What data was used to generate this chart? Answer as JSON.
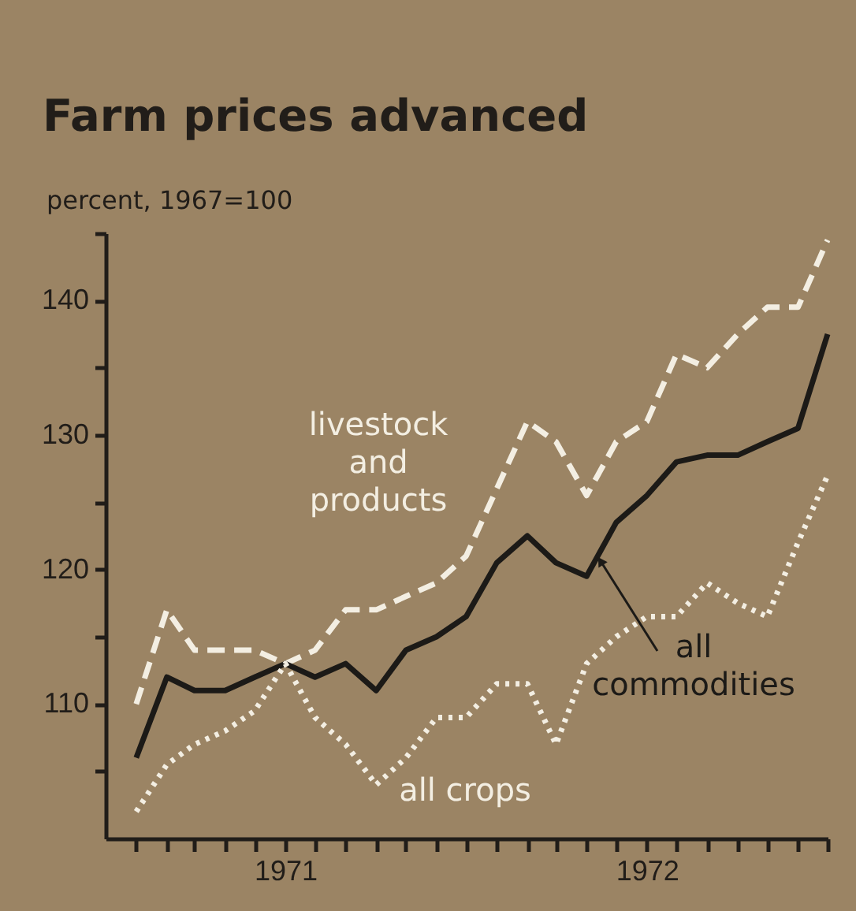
{
  "chart_data": {
    "type": "line",
    "title": "Farm prices advanced",
    "ylabel": "percent, 1967=100",
    "x": [
      "1971-01",
      "1971-02",
      "1971-03",
      "1971-04",
      "1971-05",
      "1971-06",
      "1971-07",
      "1971-08",
      "1971-09",
      "1971-10",
      "1971-11",
      "1971-12",
      "1972-01",
      "1972-02",
      "1972-03",
      "1972-04",
      "1972-05",
      "1972-06",
      "1972-07",
      "1972-08",
      "1972-09",
      "1972-10",
      "1972-11",
      "1972-12"
    ],
    "series": [
      {
        "name": "livestock and products",
        "color": "#f3eee2",
        "line_style": "dashed",
        "values": [
          110,
          117,
          114,
          114,
          114,
          113,
          114,
          117,
          117,
          118,
          119,
          121,
          126,
          131,
          129.5,
          125.5,
          129.5,
          131,
          136,
          135,
          137.5,
          139.5,
          139.5,
          144.5
        ]
      },
      {
        "name": "all commodities",
        "color": "#1c1a17",
        "line_style": "solid",
        "values": [
          106,
          112,
          111,
          111,
          112,
          113,
          112,
          113,
          111,
          114,
          115,
          116.5,
          120.5,
          122.5,
          120.5,
          119.5,
          123.5,
          125.5,
          128,
          128.5,
          128.5,
          129.5,
          130.5,
          137.5
        ]
      },
      {
        "name": "all crops",
        "color": "#f3eee2",
        "line_style": "dotted",
        "values": [
          102,
          105.5,
          107,
          108,
          109.5,
          113,
          109,
          107,
          104,
          106,
          109,
          109,
          111.5,
          111.5,
          107,
          113,
          115,
          116.5,
          116.5,
          119,
          117.5,
          116.5,
          122,
          127
        ]
      }
    ],
    "xlim": [
      "1970-12",
      "1972-12"
    ],
    "xticks": [
      {
        "value": "1971-01",
        "label": null
      },
      {
        "value": "1971-02",
        "label": null
      },
      {
        "value": "1971-03",
        "label": null
      },
      {
        "value": "1971-04",
        "label": null
      },
      {
        "value": "1971-05",
        "label": null
      },
      {
        "value": "1971-06",
        "label": "1971"
      },
      {
        "value": "1971-07",
        "label": null
      },
      {
        "value": "1971-08",
        "label": null
      },
      {
        "value": "1971-09",
        "label": null
      },
      {
        "value": "1971-10",
        "label": null
      },
      {
        "value": "1971-11",
        "label": null
      },
      {
        "value": "1971-12",
        "label": null
      },
      {
        "value": "1972-01",
        "label": null
      },
      {
        "value": "1972-02",
        "label": null
      },
      {
        "value": "1972-03",
        "label": null
      },
      {
        "value": "1972-04",
        "label": null
      },
      {
        "value": "1972-05",
        "label": null
      },
      {
        "value": "1972-06",
        "label": "1972"
      },
      {
        "value": "1972-07",
        "label": null
      },
      {
        "value": "1972-08",
        "label": null
      },
      {
        "value": "1972-09",
        "label": null
      },
      {
        "value": "1972-10",
        "label": null
      },
      {
        "value": "1972-11",
        "label": null
      },
      {
        "value": "1972-12",
        "label": null
      }
    ],
    "ylim": [
      100,
      145
    ],
    "yticks": [
      {
        "value": 105,
        "label": null
      },
      110,
      {
        "value": 115,
        "label": null
      },
      120,
      {
        "value": 125,
        "label": null
      },
      130,
      {
        "value": 135,
        "label": null
      },
      140,
      {
        "value": 145,
        "label": null
      }
    ],
    "grid": false,
    "legend": false,
    "marker": "none"
  }
}
